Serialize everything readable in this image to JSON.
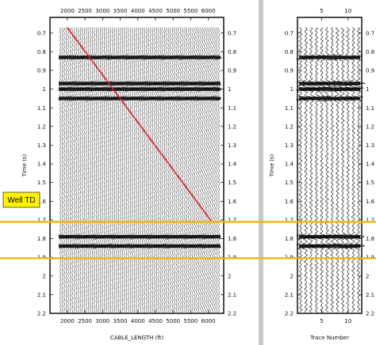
{
  "chart_data": {
    "type": "seismic-wiggle-traces",
    "panels": [
      {
        "id": "left",
        "xlabel": "CABLE_LENGTH (ft)",
        "ylabel": "Time (s)",
        "x_ticks": [
          "2000",
          "2500",
          "3000",
          "3500",
          "4000",
          "4500",
          "5000",
          "5500",
          "6000"
        ],
        "xlim": [
          1800,
          6300
        ],
        "first_break_line": {
          "color": "#d42020",
          "points": [
            [
              2000,
              0.67
            ],
            [
              6100,
              1.71
            ]
          ]
        }
      },
      {
        "id": "right",
        "xlabel": "Trace Number",
        "ylabel": "Time (s)",
        "x_ticks": [
          "5",
          "10"
        ],
        "xlim": [
          0,
          14
        ]
      }
    ],
    "y_ticks": [
      "0.7",
      "0.8",
      "0.9",
      "1",
      "1.1",
      "1.2",
      "1.3",
      "1.4",
      "1.5",
      "1.6",
      "1.7",
      "1.8",
      "1.9",
      "2",
      "2.1",
      "2.2"
    ],
    "ylim": [
      0.65,
      2.2
    ],
    "strong_reflections_s": [
      0.83,
      0.97,
      1.0,
      1.05,
      1.79,
      1.84
    ],
    "horizon_lines": [
      {
        "label": "Well TD",
        "time_s": 1.71,
        "color": "#f2b50c"
      },
      {
        "label": "",
        "time_s": 1.905,
        "color": "#f2b50c"
      }
    ]
  },
  "colors": {
    "frame": "#000000",
    "horizon": "#f2b50c",
    "first_break": "#d42020",
    "label_box": "#fff200"
  },
  "labels": {
    "well_td": "Well TD"
  }
}
